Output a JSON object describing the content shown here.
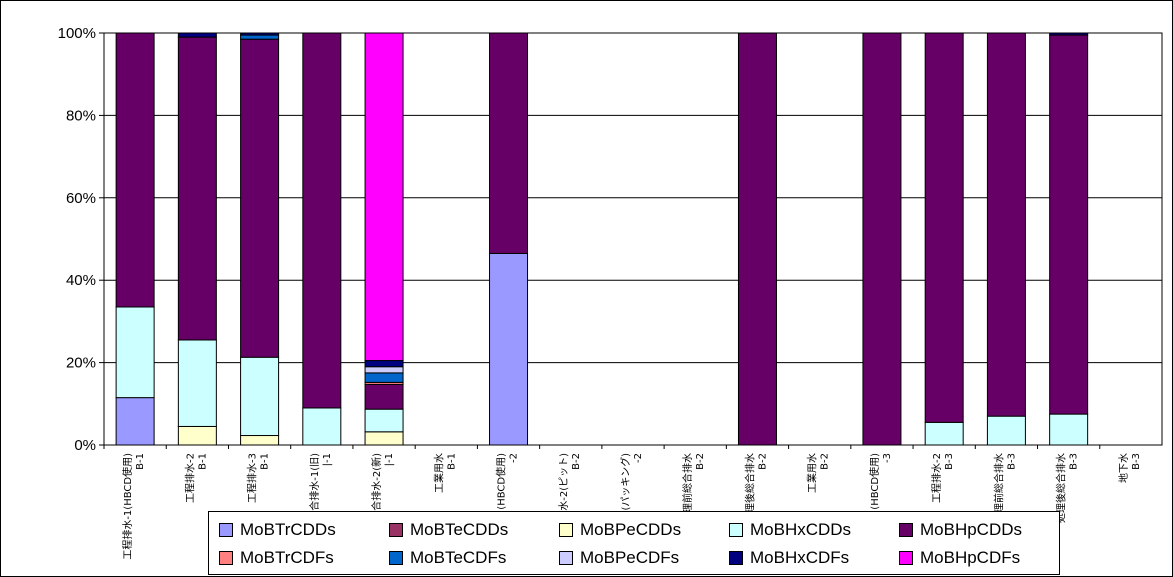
{
  "chart_data": {
    "type": "bar",
    "stacked": true,
    "grid": true,
    "legend_position": "bottom",
    "ylim": [
      0,
      100
    ],
    "yticks": [
      "0%",
      "20%",
      "40%",
      "60%",
      "80%",
      "100%"
    ],
    "categories": [
      {
        "line1": "工程排水-1(HBCD使用)",
        "line2": "B-1"
      },
      {
        "line1": "工程排水-2",
        "line2": "B-1"
      },
      {
        "line1": "工程排水-3",
        "line2": "B-1"
      },
      {
        "line1": "合排水-1(旧)",
        "line2": "|-1"
      },
      {
        "line1": "合排水-2(新)",
        "line2": "|-1"
      },
      {
        "line1": "工業用水",
        "line2": "B-1"
      },
      {
        "line1": "(HBCD使用)",
        "line2": "-2"
      },
      {
        "line1": "排水-2(ピット)",
        "line2": "B-2"
      },
      {
        "line1": "3(パッキング)",
        "line2": "-2"
      },
      {
        "line1": "理前総合排水",
        "line2": "B-2"
      },
      {
        "line1": "理後総合排水",
        "line2": "B-2"
      },
      {
        "line1": "工業用水",
        "line2": "B-2"
      },
      {
        "line1": "(HBCD使用)",
        "line2": "-3"
      },
      {
        "line1": "工程排水-2",
        "line2": "B-3"
      },
      {
        "line1": "理前総合排水",
        "line2": "B-3"
      },
      {
        "line1": "処理後総合排水",
        "line2": "B-3"
      },
      {
        "line1": "地下水",
        "line2": "B-3"
      }
    ],
    "series": [
      {
        "name": "MoBTrCDDs",
        "color": "#9999ff",
        "values": [
          11.5,
          0,
          0,
          0,
          0,
          0,
          46.5,
          0,
          0,
          0,
          0,
          0,
          0,
          0,
          0,
          0,
          0
        ]
      },
      {
        "name": "MoBTeCDDs",
        "color": "#993366",
        "values": [
          0,
          0,
          0,
          0,
          0,
          0,
          0,
          0,
          0,
          0,
          0,
          0,
          0,
          0,
          0,
          0,
          0
        ]
      },
      {
        "name": "MoBPeCDDs",
        "color": "#ffffcc",
        "values": [
          0,
          4.5,
          2.3,
          0,
          3.2,
          0,
          0,
          0,
          0,
          0,
          0,
          0,
          0,
          0,
          0,
          0,
          0
        ]
      },
      {
        "name": "MoBHxCDDs",
        "color": "#ccffff",
        "values": [
          22,
          21,
          19,
          9,
          5.5,
          0,
          0,
          0,
          0,
          0,
          0,
          0,
          0,
          5.5,
          7,
          7.5,
          0
        ]
      },
      {
        "name": "MoBHpCDDs",
        "color": "#660066",
        "values": [
          66.5,
          73.5,
          77.2,
          91,
          6,
          0,
          53.5,
          0,
          0,
          0,
          100,
          0,
          100,
          94.5,
          93,
          92,
          0
        ]
      },
      {
        "name": "MoBTrCDFs",
        "color": "#ff8080",
        "values": [
          0,
          0,
          0,
          0,
          0.5,
          0,
          0,
          0,
          0,
          0,
          0,
          0,
          0,
          0,
          0,
          0,
          0
        ]
      },
      {
        "name": "MoBTeCDFs",
        "color": "#0066cc",
        "values": [
          0,
          0,
          1.0,
          0,
          2.3,
          0,
          0,
          0,
          0,
          0,
          0,
          0,
          0,
          0,
          0,
          0,
          0
        ]
      },
      {
        "name": "MoBPeCDFs",
        "color": "#ccccff",
        "values": [
          0,
          0,
          0,
          0,
          1.5,
          0,
          0,
          0,
          0,
          0,
          0,
          0,
          0,
          0,
          0,
          0,
          0
        ]
      },
      {
        "name": "MoBHxCDFs",
        "color": "#000080",
        "values": [
          0,
          1.0,
          0.5,
          0,
          1.5,
          0,
          0,
          0,
          0,
          0,
          0,
          0,
          0,
          0,
          0,
          0.5,
          0
        ]
      },
      {
        "name": "MoBHpCDFs",
        "color": "#ff00ff",
        "values": [
          0,
          0,
          0,
          0,
          79.5,
          0,
          0,
          0,
          0,
          0,
          0,
          0,
          0,
          0,
          0,
          0,
          0
        ]
      }
    ]
  }
}
